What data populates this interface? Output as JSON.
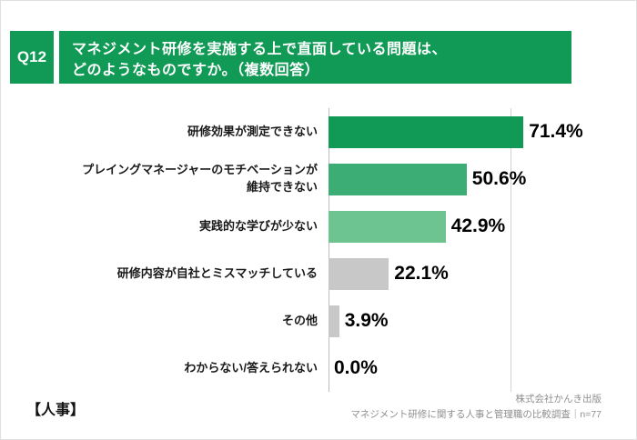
{
  "header": {
    "q_label": "Q12",
    "title_line1": "マネジメント研修を実施する上で直面している問題は、",
    "title_line2": "どのようなものですか。（複数回答）"
  },
  "chart_data": {
    "type": "bar",
    "orientation": "horizontal",
    "title": "マネジメント研修を実施する上で直面している問題は、どのようなものですか。（複数回答）",
    "categories": [
      "研修効果が測定できない",
      "プレイングマネージャーのモチベーションが\n維持できない",
      "実践的な学びが少ない",
      "研修内容が自社とミスマッチしている",
      "その他",
      "わからない/答えられない"
    ],
    "values": [
      71.4,
      50.6,
      42.9,
      22.1,
      3.9,
      0.0
    ],
    "value_labels": [
      "71.4%",
      "50.6%",
      "42.9%",
      "22.1%",
      "3.9%",
      "0.0%"
    ],
    "bar_colors": [
      "#119a55",
      "#3cae75",
      "#6ec490",
      "#c8c8c8",
      "#c8c8c8",
      "#c8c8c8"
    ],
    "unit": "%",
    "xlim": [
      0,
      100
    ],
    "legend": "none",
    "grid": "single-right-gridline"
  },
  "footer": {
    "group_label": "【人事】",
    "source_line1": "株式会社かんき出版",
    "source_line2": "マネジメント研修に関する人事と管理職の比較調査｜n=77"
  },
  "colors": {
    "accent_green": "#119a55",
    "bar_green_mid": "#3cae75",
    "bar_green_light": "#6ec490",
    "bar_gray": "#c8c8c8"
  }
}
